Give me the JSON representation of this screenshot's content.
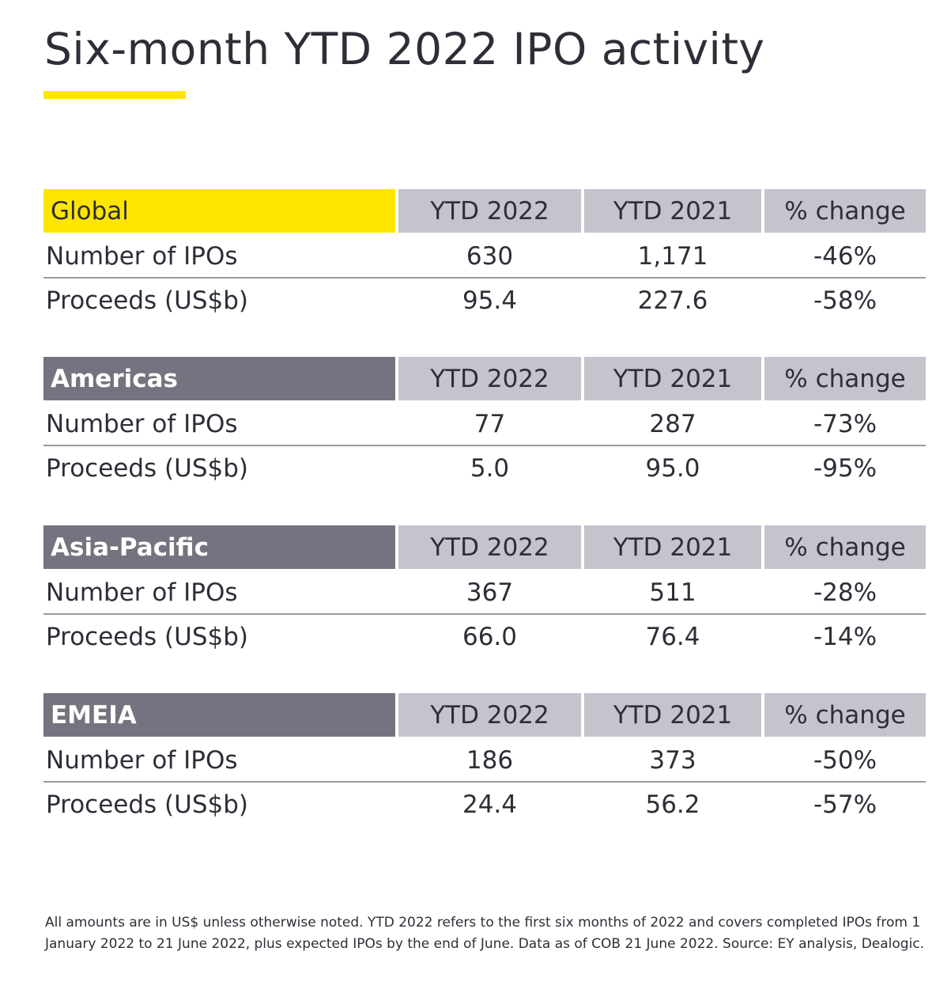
{
  "title": "Six-month YTD 2022 IPO activity",
  "accent_color": "#ffe600",
  "header_gray": "#747480",
  "columns": [
    "YTD 2022",
    "YTD 2021",
    "% change"
  ],
  "sections": [
    {
      "region": "Global",
      "rows": [
        {
          "label": "Number of IPOs",
          "ytd2022": "630",
          "ytd2021": "1,171",
          "change": "-46%"
        },
        {
          "label": "Proceeds (US$b)",
          "ytd2022": "95.4",
          "ytd2021": "227.6",
          "change": "-58%"
        }
      ]
    },
    {
      "region": "Americas",
      "rows": [
        {
          "label": "Number of IPOs",
          "ytd2022": "77",
          "ytd2021": "287",
          "change": "-73%"
        },
        {
          "label": "Proceeds (US$b)",
          "ytd2022": "5.0",
          "ytd2021": "95.0",
          "change": "-95%"
        }
      ]
    },
    {
      "region": "Asia-Pacific",
      "rows": [
        {
          "label": "Number of IPOs",
          "ytd2022": "367",
          "ytd2021": "511",
          "change": "-28%"
        },
        {
          "label": "Proceeds (US$b)",
          "ytd2022": "66.0",
          "ytd2021": "76.4",
          "change": "-14%"
        }
      ]
    },
    {
      "region": "EMEIA",
      "rows": [
        {
          "label": "Number of IPOs",
          "ytd2022": "186",
          "ytd2021": "373",
          "change": "-50%"
        },
        {
          "label": "Proceeds (US$b)",
          "ytd2022": "24.4",
          "ytd2021": "56.2",
          "change": "-57%"
        }
      ]
    }
  ],
  "footnote": "All amounts are in US$ unless otherwise noted. YTD 2022 refers to the first six months of 2022 and covers completed IPOs from 1 January 2022 to 21 June 2022, plus expected IPOs by the end of June. Data as of COB 21 June 2022. Source: EY analysis, Dealogic."
}
